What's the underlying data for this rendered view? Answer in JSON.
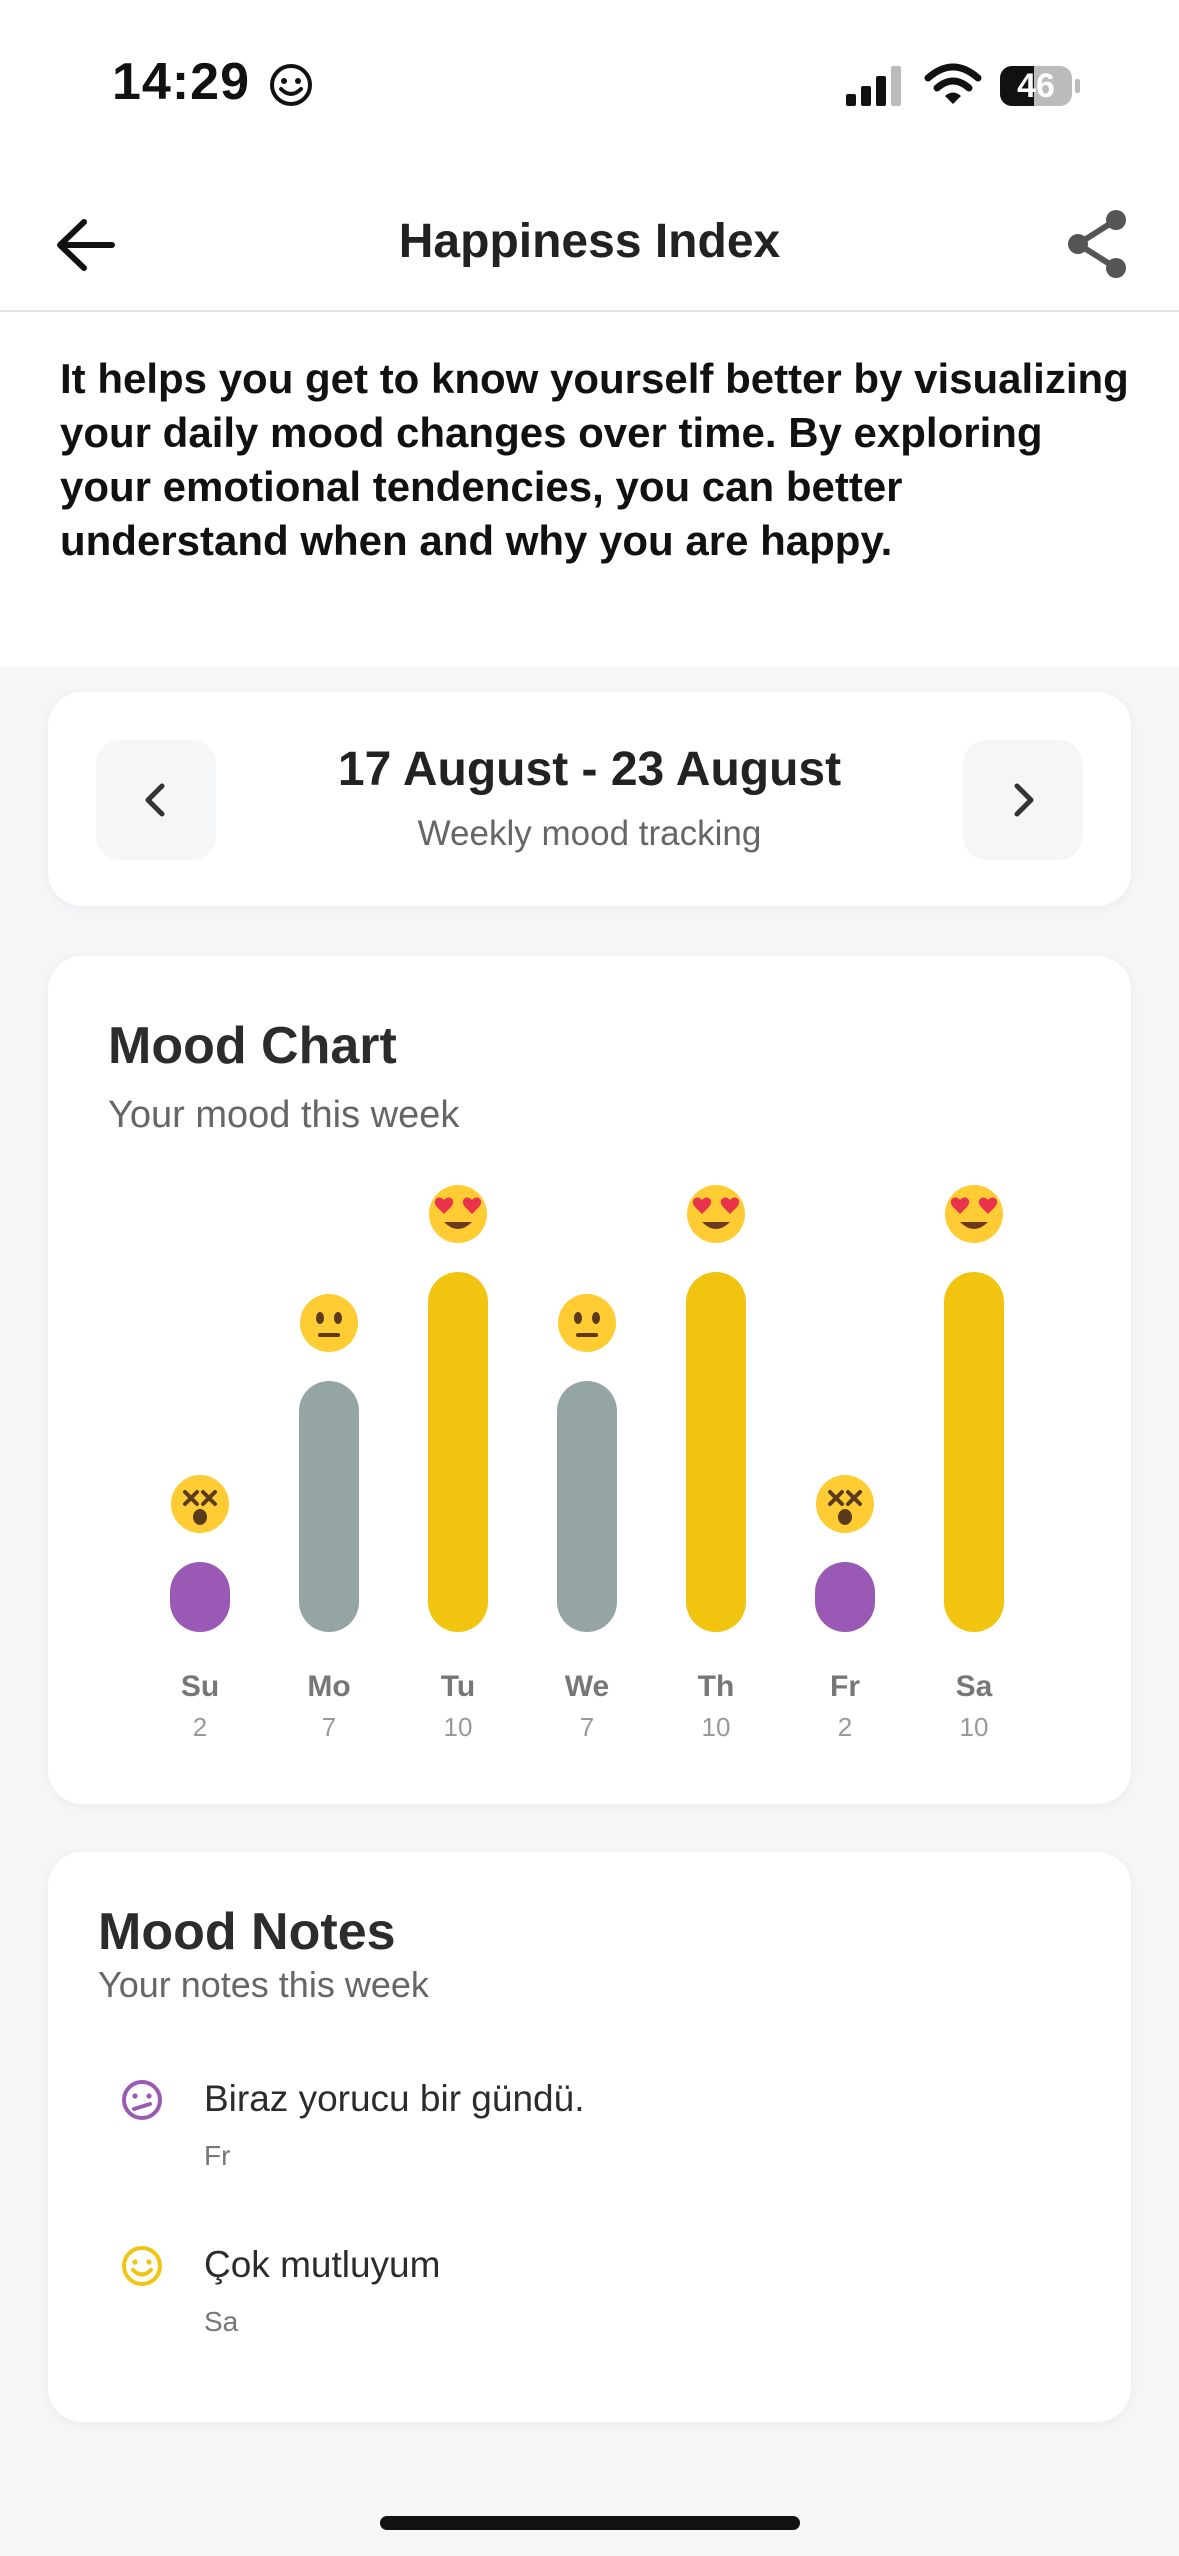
{
  "status_bar": {
    "time": "14:29",
    "battery": "46"
  },
  "header": {
    "title": "Happiness Index"
  },
  "description": "It helps you get to know yourself better by visualizing your daily mood changes over time. By exploring your emotional tendencies, you can better understand when and why you are happy.",
  "week_selector": {
    "range": "17 August - 23 August",
    "subtitle": "Weekly mood tracking"
  },
  "mood_chart": {
    "title": "Mood Chart",
    "subtitle": "Your mood this week"
  },
  "chart_data": {
    "type": "bar",
    "categories": [
      "Su",
      "Mo",
      "Tu",
      "We",
      "Th",
      "Fr",
      "Sa"
    ],
    "values": [
      2,
      7,
      10,
      7,
      10,
      2,
      10
    ],
    "moods": [
      "dizzy-face",
      "neutral-face",
      "heart-eyes",
      "neutral-face",
      "heart-eyes",
      "dizzy-face",
      "heart-eyes"
    ],
    "colors": {
      "low": "#9b59b6",
      "mid": "#95a5a6",
      "high": "#f1c40f"
    },
    "ylim": [
      0,
      10
    ]
  },
  "mood_notes": {
    "title": "Mood Notes",
    "subtitle": "Your notes this week",
    "items": [
      {
        "text": "Biraz yorucu bir gündü.",
        "day": "Fr",
        "icon": "confused-face-icon",
        "color": "#9b59b6"
      },
      {
        "text": "Çok mutluyum",
        "day": "Sa",
        "icon": "smile-face-icon",
        "color": "#f1c40f"
      }
    ]
  }
}
